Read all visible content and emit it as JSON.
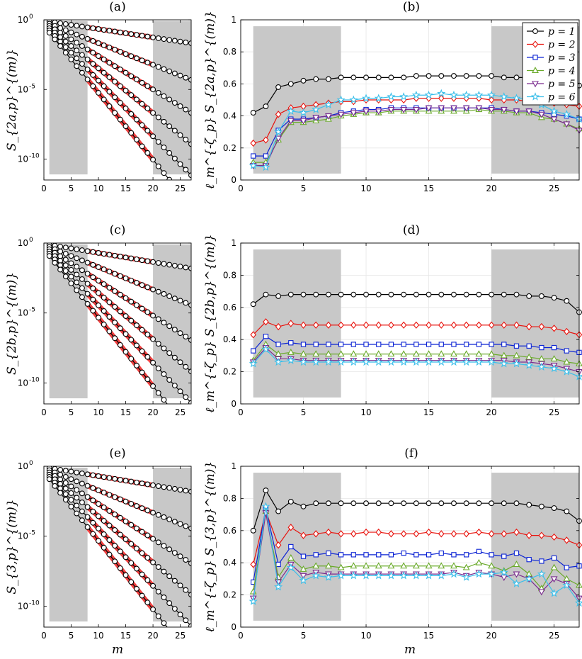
{
  "chart_data": [
    {
      "id": "a",
      "type": "line",
      "scale": "log",
      "title": "(a)",
      "ylabel_html": "S<sup>(m)</sup><sub>2a,p</sub>",
      "ylabel_text": "S_{2a,p}^{(m)}",
      "xlabel": "",
      "xlim": [
        0,
        27
      ],
      "ylim_exp": [
        -11.5,
        0
      ],
      "xticks": [
        "0",
        "5",
        "10",
        "15",
        "20",
        "25"
      ],
      "yticks": [
        "10^0",
        "10^-5",
        "10^-10"
      ],
      "shaded_regions": [
        [
          1,
          8
        ],
        [
          20,
          27
        ]
      ],
      "fit_range": [
        8,
        20
      ],
      "series": [
        {
          "p": 1,
          "start": -0.12,
          "slope": -0.06
        },
        {
          "p": 2,
          "start": -0.28,
          "slope": -0.155
        },
        {
          "p": 3,
          "start": -0.44,
          "slope": -0.24
        },
        {
          "p": 4,
          "start": -0.6,
          "slope": -0.32
        },
        {
          "p": 5,
          "start": -0.76,
          "slope": -0.4
        },
        {
          "p": 6,
          "start": -0.92,
          "slope": -0.48
        }
      ]
    },
    {
      "id": "b",
      "type": "line",
      "scale": "linear",
      "title": "(b)",
      "ylabel_text": "ℓ_m^{-ζ_p} S_{2a,p}^{(m)}",
      "xlabel": "",
      "xlim": [
        0,
        27
      ],
      "ylim": [
        0,
        1
      ],
      "xticks": [
        "0",
        "5",
        "10",
        "15",
        "20",
        "25"
      ],
      "yticks": [
        "0",
        "0.2",
        "0.4",
        "0.6",
        "0.8",
        "1"
      ],
      "shaded_regions": [
        [
          1,
          8
        ],
        [
          20,
          27
        ]
      ],
      "legend": [
        "p = 1",
        "p = 2",
        "p = 3",
        "p = 4",
        "p = 5",
        "p = 6"
      ],
      "series": [
        {
          "name": "p = 1",
          "values": [
            0.42,
            0.46,
            0.58,
            0.6,
            0.62,
            0.63,
            0.63,
            0.64,
            0.64,
            0.64,
            0.64,
            0.64,
            0.64,
            0.65,
            0.65,
            0.65,
            0.65,
            0.65,
            0.65,
            0.65,
            0.64,
            0.64,
            0.64,
            0.63,
            0.62,
            0.61,
            0.59
          ]
        },
        {
          "name": "p = 2",
          "values": [
            0.23,
            0.25,
            0.41,
            0.45,
            0.46,
            0.47,
            0.48,
            0.49,
            0.49,
            0.5,
            0.5,
            0.5,
            0.5,
            0.51,
            0.51,
            0.51,
            0.51,
            0.51,
            0.51,
            0.5,
            0.5,
            0.5,
            0.49,
            0.49,
            0.48,
            0.47,
            0.46
          ]
        },
        {
          "name": "p = 3",
          "values": [
            0.15,
            0.15,
            0.31,
            0.38,
            0.38,
            0.39,
            0.4,
            0.42,
            0.43,
            0.44,
            0.44,
            0.45,
            0.45,
            0.45,
            0.45,
            0.45,
            0.45,
            0.45,
            0.45,
            0.45,
            0.44,
            0.43,
            0.43,
            0.42,
            0.41,
            0.4,
            0.38
          ]
        },
        {
          "name": "p = 4",
          "values": [
            0.11,
            0.11,
            0.25,
            0.36,
            0.36,
            0.37,
            0.38,
            0.4,
            0.41,
            0.42,
            0.42,
            0.43,
            0.43,
            0.43,
            0.43,
            0.43,
            0.43,
            0.43,
            0.44,
            0.43,
            0.43,
            0.42,
            0.42,
            0.39,
            0.38,
            0.35,
            0.32
          ]
        },
        {
          "name": "p = 5",
          "values": [
            0.09,
            0.09,
            0.26,
            0.37,
            0.37,
            0.39,
            0.4,
            0.41,
            0.42,
            0.43,
            0.43,
            0.44,
            0.44,
            0.44,
            0.45,
            0.45,
            0.45,
            0.45,
            0.45,
            0.44,
            0.44,
            0.43,
            0.43,
            0.41,
            0.38,
            0.35,
            0.31
          ]
        },
        {
          "name": "p = 6",
          "values": [
            0.09,
            0.08,
            0.3,
            0.43,
            0.42,
            0.44,
            0.47,
            0.5,
            0.5,
            0.51,
            0.51,
            0.52,
            0.52,
            0.53,
            0.53,
            0.54,
            0.53,
            0.53,
            0.53,
            0.53,
            0.52,
            0.51,
            0.51,
            0.47,
            0.43,
            0.41,
            0.38
          ]
        }
      ]
    },
    {
      "id": "c",
      "type": "line",
      "scale": "log",
      "title": "(c)",
      "ylabel_text": "S_{2b,p}^{(m)}",
      "xlabel": "",
      "xlim": [
        0,
        27
      ],
      "ylim_exp": [
        -11.5,
        0
      ],
      "xticks": [
        "0",
        "5",
        "10",
        "15",
        "20",
        "25"
      ],
      "yticks": [
        "10^0",
        "10^-5",
        "10^-10"
      ],
      "shaded_regions": [
        [
          1,
          8
        ],
        [
          20,
          27
        ]
      ],
      "fit_range": [
        8,
        20
      ],
      "series": [
        {
          "p": 1,
          "start": -0.12,
          "slope": -0.065
        },
        {
          "p": 2,
          "start": -0.28,
          "slope": -0.16
        },
        {
          "p": 3,
          "start": -0.44,
          "slope": -0.25
        },
        {
          "p": 4,
          "start": -0.6,
          "slope": -0.33
        },
        {
          "p": 5,
          "start": -0.76,
          "slope": -0.41
        },
        {
          "p": 6,
          "start": -0.92,
          "slope": -0.49
        }
      ]
    },
    {
      "id": "d",
      "type": "line",
      "scale": "linear",
      "title": "(d)",
      "ylabel_text": "ℓ_m^{-ζ_p} S_{2b,p}^{(m)}",
      "xlabel": "",
      "xlim": [
        0,
        27
      ],
      "ylim": [
        0,
        1
      ],
      "xticks": [
        "0",
        "5",
        "10",
        "15",
        "20",
        "25"
      ],
      "yticks": [
        "0",
        "0.2",
        "0.4",
        "0.6",
        "0.8",
        "1"
      ],
      "shaded_regions": [
        [
          1,
          8
        ],
        [
          20,
          27
        ]
      ],
      "series": [
        {
          "name": "p = 1",
          "values": [
            0.62,
            0.68,
            0.67,
            0.68,
            0.68,
            0.68,
            0.68,
            0.68,
            0.68,
            0.68,
            0.68,
            0.68,
            0.68,
            0.68,
            0.68,
            0.68,
            0.68,
            0.68,
            0.68,
            0.68,
            0.68,
            0.68,
            0.67,
            0.67,
            0.66,
            0.64,
            0.57
          ]
        },
        {
          "name": "p = 2",
          "values": [
            0.43,
            0.51,
            0.48,
            0.5,
            0.49,
            0.49,
            0.49,
            0.49,
            0.49,
            0.49,
            0.49,
            0.49,
            0.49,
            0.49,
            0.49,
            0.49,
            0.49,
            0.49,
            0.49,
            0.49,
            0.49,
            0.49,
            0.48,
            0.48,
            0.47,
            0.45,
            0.43
          ]
        },
        {
          "name": "p = 3",
          "values": [
            0.33,
            0.42,
            0.37,
            0.38,
            0.37,
            0.37,
            0.37,
            0.37,
            0.37,
            0.37,
            0.37,
            0.37,
            0.37,
            0.37,
            0.37,
            0.37,
            0.37,
            0.37,
            0.37,
            0.37,
            0.37,
            0.36,
            0.36,
            0.35,
            0.35,
            0.33,
            0.32
          ]
        },
        {
          "name": "p = 4",
          "values": [
            0.27,
            0.37,
            0.31,
            0.32,
            0.31,
            0.31,
            0.31,
            0.31,
            0.31,
            0.31,
            0.31,
            0.31,
            0.31,
            0.31,
            0.31,
            0.31,
            0.31,
            0.31,
            0.31,
            0.31,
            0.3,
            0.3,
            0.29,
            0.28,
            0.28,
            0.26,
            0.25
          ]
        },
        {
          "name": "p = 5",
          "values": [
            0.26,
            0.35,
            0.28,
            0.28,
            0.27,
            0.27,
            0.27,
            0.27,
            0.27,
            0.27,
            0.27,
            0.27,
            0.27,
            0.27,
            0.27,
            0.27,
            0.27,
            0.27,
            0.27,
            0.27,
            0.27,
            0.26,
            0.26,
            0.25,
            0.24,
            0.22,
            0.2
          ]
        },
        {
          "name": "p = 6",
          "values": [
            0.25,
            0.34,
            0.26,
            0.27,
            0.26,
            0.26,
            0.26,
            0.26,
            0.26,
            0.26,
            0.26,
            0.26,
            0.26,
            0.26,
            0.26,
            0.26,
            0.26,
            0.26,
            0.26,
            0.26,
            0.25,
            0.25,
            0.24,
            0.23,
            0.22,
            0.2,
            0.17
          ]
        }
      ]
    },
    {
      "id": "e",
      "type": "line",
      "scale": "log",
      "title": "(e)",
      "ylabel_text": "S_{3,p}^{(m)}",
      "xlabel": "m",
      "xlim": [
        0,
        27
      ],
      "ylim_exp": [
        -11.5,
        0
      ],
      "xticks": [
        "0",
        "5",
        "10",
        "15",
        "20",
        "25"
      ],
      "yticks": [
        "10^0",
        "10^-5",
        "10^-10"
      ],
      "shaded_regions": [
        [
          1,
          8
        ],
        [
          20,
          27
        ]
      ],
      "fit_range": [
        8,
        20
      ],
      "series": [
        {
          "p": 1,
          "start": -0.12,
          "slope": -0.065
        },
        {
          "p": 2,
          "start": -0.28,
          "slope": -0.16
        },
        {
          "p": 3,
          "start": -0.44,
          "slope": -0.25
        },
        {
          "p": 4,
          "start": -0.6,
          "slope": -0.33
        },
        {
          "p": 5,
          "start": -0.76,
          "slope": -0.41
        },
        {
          "p": 6,
          "start": -0.92,
          "slope": -0.49
        }
      ]
    },
    {
      "id": "f",
      "type": "line",
      "scale": "linear",
      "title": "(f)",
      "ylabel_text": "ℓ_m^{-ζ_p} S_{3,p}^{(m)}",
      "xlabel": "m",
      "xlim": [
        0,
        27
      ],
      "ylim": [
        0,
        1
      ],
      "xticks": [
        "0",
        "5",
        "10",
        "15",
        "20",
        "25"
      ],
      "yticks": [
        "0",
        "0.2",
        "0.4",
        "0.6",
        "0.8",
        "1"
      ],
      "shaded_regions": [
        [
          1,
          8
        ],
        [
          20,
          27
        ]
      ],
      "series": [
        {
          "name": "p = 1",
          "values": [
            0.6,
            0.85,
            0.72,
            0.78,
            0.75,
            0.77,
            0.77,
            0.77,
            0.77,
            0.77,
            0.77,
            0.77,
            0.77,
            0.77,
            0.77,
            0.77,
            0.77,
            0.77,
            0.77,
            0.77,
            0.77,
            0.77,
            0.76,
            0.75,
            0.74,
            0.72,
            0.66
          ]
        },
        {
          "name": "p = 2",
          "values": [
            0.39,
            0.72,
            0.51,
            0.62,
            0.57,
            0.58,
            0.59,
            0.58,
            0.58,
            0.59,
            0.59,
            0.58,
            0.58,
            0.58,
            0.59,
            0.58,
            0.58,
            0.58,
            0.59,
            0.58,
            0.58,
            0.59,
            0.57,
            0.57,
            0.56,
            0.54,
            0.51
          ]
        },
        {
          "name": "p = 3",
          "values": [
            0.28,
            0.74,
            0.39,
            0.5,
            0.44,
            0.45,
            0.46,
            0.45,
            0.45,
            0.45,
            0.45,
            0.45,
            0.46,
            0.45,
            0.45,
            0.46,
            0.45,
            0.45,
            0.47,
            0.45,
            0.44,
            0.46,
            0.42,
            0.41,
            0.43,
            0.37,
            0.38
          ]
        },
        {
          "name": "p = 4",
          "values": [
            0.22,
            0.72,
            0.31,
            0.43,
            0.36,
            0.38,
            0.38,
            0.37,
            0.38,
            0.38,
            0.38,
            0.38,
            0.38,
            0.38,
            0.38,
            0.38,
            0.38,
            0.37,
            0.4,
            0.38,
            0.35,
            0.39,
            0.33,
            0.24,
            0.37,
            0.3,
            0.26
          ]
        },
        {
          "name": "p = 5",
          "values": [
            0.18,
            0.71,
            0.28,
            0.39,
            0.32,
            0.34,
            0.33,
            0.33,
            0.33,
            0.33,
            0.33,
            0.33,
            0.33,
            0.33,
            0.33,
            0.33,
            0.34,
            0.32,
            0.34,
            0.33,
            0.31,
            0.33,
            0.3,
            0.22,
            0.3,
            0.27,
            0.18
          ]
        },
        {
          "name": "p = 6",
          "values": [
            0.16,
            0.75,
            0.25,
            0.37,
            0.29,
            0.32,
            0.31,
            0.32,
            0.32,
            0.32,
            0.32,
            0.32,
            0.32,
            0.32,
            0.32,
            0.32,
            0.33,
            0.31,
            0.33,
            0.33,
            0.34,
            0.27,
            0.3,
            0.33,
            0.21,
            0.26,
            0.15
          ]
        }
      ]
    }
  ],
  "colors": {
    "series": [
      "#000000",
      "#e8120c",
      "#0a22d4",
      "#6aaa2a",
      "#7a2b8e",
      "#3cbfea"
    ],
    "shade": "#c8c8c8",
    "fit": "#f04040",
    "grid": "#e6e6e6"
  },
  "markers": [
    "circle",
    "diamond",
    "square",
    "triangle-up",
    "triangle-down",
    "star"
  ]
}
